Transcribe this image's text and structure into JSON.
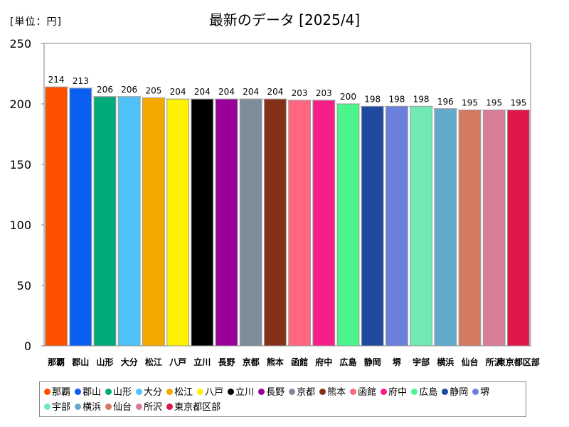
{
  "unit_label": "[単位：円]",
  "chart_data": {
    "type": "bar",
    "title": "最新のデータ [2025/4]",
    "xlabel": "",
    "ylabel": "",
    "ylim": [
      0,
      250
    ],
    "yticks": [
      0,
      50,
      100,
      150,
      200,
      250
    ],
    "grid": false,
    "legend_position": "bottom",
    "categories": [
      "那覇",
      "郡山",
      "山形",
      "大分",
      "松江",
      "八戸",
      "立川",
      "長野",
      "京都",
      "熊本",
      "函館",
      "府中",
      "広島",
      "静岡",
      "堺",
      "宇部",
      "横浜",
      "仙台",
      "所沢",
      "東京都区部"
    ],
    "values": [
      214,
      213,
      206,
      206,
      205,
      204,
      204,
      204,
      204,
      204,
      203,
      203,
      200,
      198,
      198,
      198,
      196,
      195,
      195,
      195
    ],
    "colors": [
      "#ff5000",
      "#0a5ff0",
      "#00aa7a",
      "#4fc3f7",
      "#f5a800",
      "#fff200",
      "#000000",
      "#990099",
      "#7f8c9a",
      "#85311a",
      "#ff6680",
      "#f71e8a",
      "#4cf58c",
      "#1f4aa0",
      "#6b7fdc",
      "#72e8b4",
      "#62aacc",
      "#d47a62",
      "#d87d98",
      "#e0184a"
    ]
  },
  "legend": {
    "items": [
      "那覇",
      "郡山",
      "山形",
      "大分",
      "松江",
      "八戸",
      "立川",
      "長野",
      "京都",
      "熊本",
      "函館",
      "府中",
      "広島",
      "静岡",
      "堺",
      "宇部",
      "横浜",
      "仙台",
      "所沢",
      "東京都区部"
    ]
  }
}
